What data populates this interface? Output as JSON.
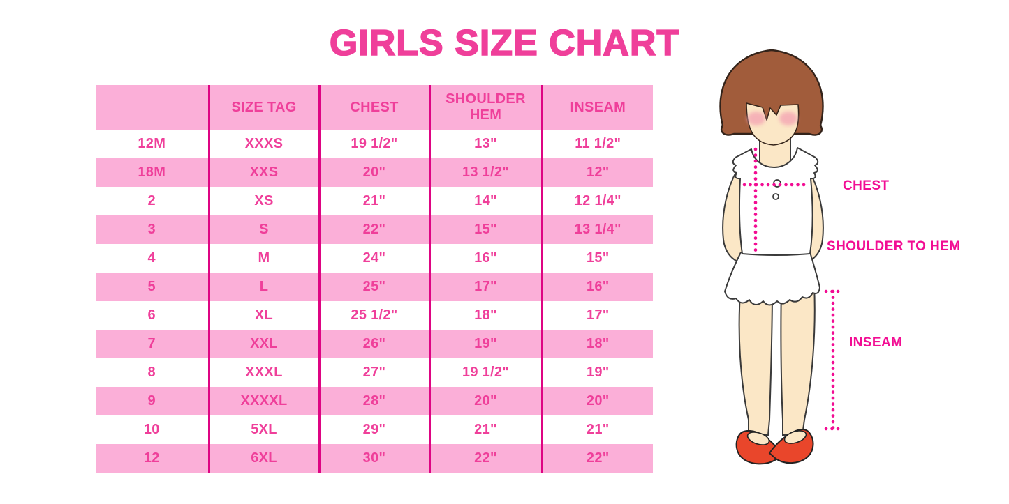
{
  "title": "GIRLS SIZE CHART",
  "colors": {
    "title_pink": "#EF3F9A",
    "row_band_pink": "#FBAFD8",
    "column_divider_magenta": "#DE0483",
    "table_text_pink": "#EF3F9A",
    "measure_label_magenta": "#F20D93",
    "dotted_line_pink": "#F20D93",
    "hair_brown": "#A15C3B",
    "skin_tone": "#FBE7C6",
    "blush_pink": "#F4A6B4",
    "shoe_red": "#E9462B"
  },
  "chart_data": {
    "type": "table",
    "title": "GIRLS SIZE CHART",
    "columns": [
      "",
      "SIZE TAG",
      "CHEST",
      "SHOULDER HEM",
      "INSEAM"
    ],
    "rows": [
      [
        "12M",
        "XXXS",
        "19 1/2\"",
        "13\"",
        "11 1/2\""
      ],
      [
        "18M",
        "XXS",
        "20\"",
        "13 1/2\"",
        "12\""
      ],
      [
        "2",
        "XS",
        "21\"",
        "14\"",
        "12 1/4\""
      ],
      [
        "3",
        "S",
        "22\"",
        "15\"",
        "13 1/4\""
      ],
      [
        "4",
        "M",
        "24\"",
        "16\"",
        "15\""
      ],
      [
        "5",
        "L",
        "25\"",
        "17\"",
        "16\""
      ],
      [
        "6",
        "XL",
        "25 1/2\"",
        "18\"",
        "17\""
      ],
      [
        "7",
        "XXL",
        "26\"",
        "19\"",
        "18\""
      ],
      [
        "8",
        "XXXL",
        "27\"",
        "19 1/2\"",
        "19\""
      ],
      [
        "9",
        "XXXXL",
        "28\"",
        "20\"",
        "20\""
      ],
      [
        "10",
        "5XL",
        "29\"",
        "21\"",
        "21\""
      ],
      [
        "12",
        "6XL",
        "30\"",
        "22\"",
        "22\""
      ]
    ],
    "layout": {
      "row_striping": "alternating white/pink, header pink",
      "grid": "vertical magenta dividers only"
    }
  },
  "diagram": {
    "labels": {
      "chest": "CHEST",
      "shoulder_to_hem": "SHOULDER TO HEM",
      "inseam": "INSEAM"
    }
  }
}
